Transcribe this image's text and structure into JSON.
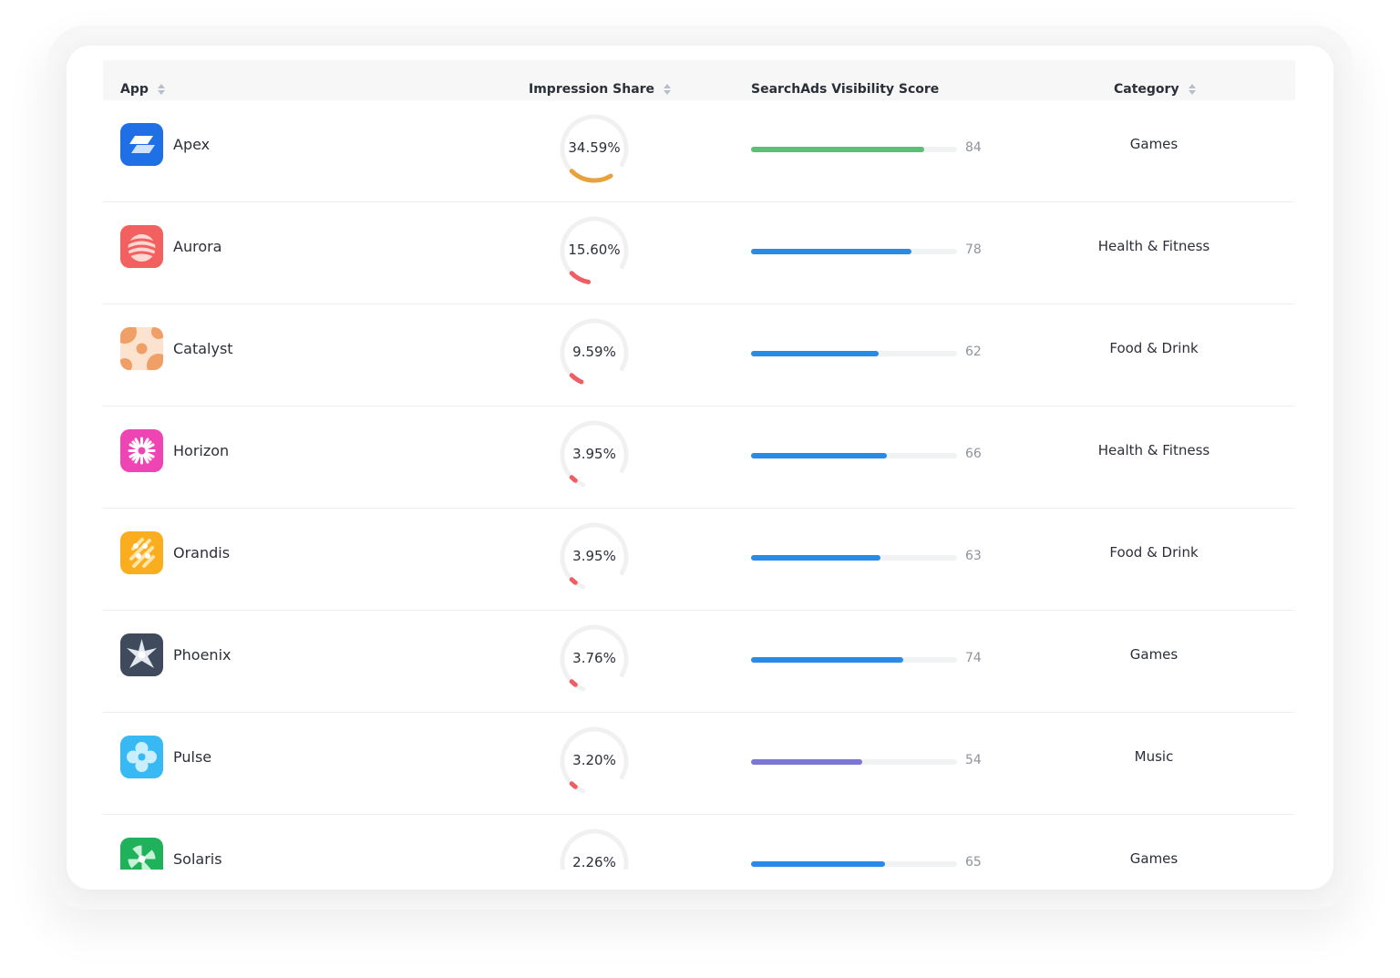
{
  "table": {
    "columns": {
      "app": "App",
      "impression_share": "Impression Share",
      "visibility_score": "SearchAds Visibility Score",
      "category": "Category"
    },
    "rows": [
      {
        "app": "Apex",
        "icon": "apex-logo-icon",
        "impression_share": "34.59%",
        "impression_share_value": 34.59,
        "gauge_color": "#e8a23c",
        "score": "84",
        "score_value": 84,
        "bar_color": "#5bbf78",
        "category": "Games"
      },
      {
        "app": "Aurora",
        "icon": "aurora-logo-icon",
        "impression_share": "15.60%",
        "impression_share_value": 15.6,
        "gauge_color": "#ee5e63",
        "score": "78",
        "score_value": 78,
        "bar_color": "#2a8ae8",
        "category": "Health & Fitness"
      },
      {
        "app": "Catalyst",
        "icon": "catalyst-logo-icon",
        "impression_share": "9.59%",
        "impression_share_value": 9.59,
        "gauge_color": "#ee5e63",
        "score": "62",
        "score_value": 62,
        "bar_color": "#2a8ae8",
        "category": "Food & Drink"
      },
      {
        "app": "Horizon",
        "icon": "horizon-logo-icon",
        "impression_share": "3.95%",
        "impression_share_value": 3.95,
        "gauge_color": "#ee5e63",
        "score": "66",
        "score_value": 66,
        "bar_color": "#2a8ae8",
        "category": "Health & Fitness"
      },
      {
        "app": "Orandis",
        "icon": "orandis-logo-icon",
        "impression_share": "3.95%",
        "impression_share_value": 3.95,
        "gauge_color": "#ee5e63",
        "score": "63",
        "score_value": 63,
        "bar_color": "#2a8ae8",
        "category": "Food & Drink"
      },
      {
        "app": "Phoenix",
        "icon": "phoenix-logo-icon",
        "impression_share": "3.76%",
        "impression_share_value": 3.76,
        "gauge_color": "#ee5e63",
        "score": "74",
        "score_value": 74,
        "bar_color": "#2a8ae8",
        "category": "Games"
      },
      {
        "app": "Pulse",
        "icon": "pulse-logo-icon",
        "impression_share": "3.20%",
        "impression_share_value": 3.2,
        "gauge_color": "#ee5e63",
        "score": "54",
        "score_value": 54,
        "bar_color": "#7b78d4",
        "category": "Music"
      },
      {
        "app": "Solaris",
        "icon": "solaris-logo-icon",
        "impression_share": "2.26%",
        "impression_share_value": 2.26,
        "gauge_color": "#ee5e63",
        "score": "65",
        "score_value": 65,
        "bar_color": "#2a8ae8",
        "category": "Games"
      }
    ]
  }
}
